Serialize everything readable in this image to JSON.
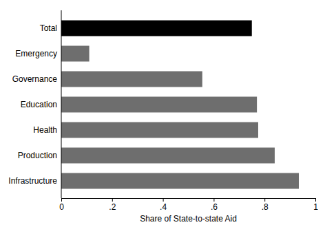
{
  "chart_data": {
    "type": "bar",
    "orientation": "horizontal",
    "x_label": "Share of State-to-state Aid",
    "categories": [
      "Total",
      "Emergency",
      "Governance",
      "Education",
      "Health",
      "Production",
      "Infrastructure"
    ],
    "values": [
      0.75,
      0.11,
      0.555,
      0.77,
      0.775,
      0.84,
      0.935
    ],
    "colors": [
      "#000000",
      "#6e6e6e",
      "#6e6e6e",
      "#6e6e6e",
      "#6e6e6e",
      "#6e6e6e",
      "#6e6e6e"
    ],
    "xlim": [
      0,
      1
    ],
    "xticks": [
      0,
      {
        "value": 0.2,
        "label": ".2"
      },
      {
        "value": 0.4,
        "label": ".4"
      },
      {
        "value": 0.6,
        "label": ".6"
      },
      {
        "value": 0.8,
        "label": ".8"
      },
      1
    ],
    "grid": false
  }
}
